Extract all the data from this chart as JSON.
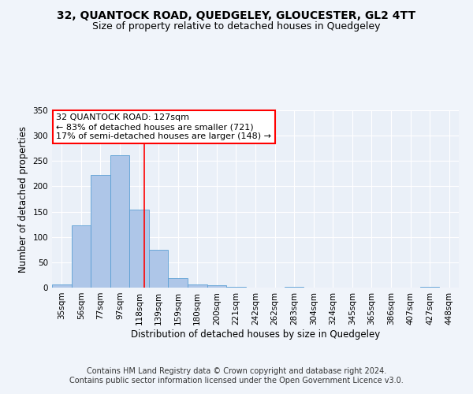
{
  "title": "32, QUANTOCK ROAD, QUEDGELEY, GLOUCESTER, GL2 4TT",
  "subtitle": "Size of property relative to detached houses in Quedgeley",
  "xlabel": "Distribution of detached houses by size in Quedgeley",
  "ylabel": "Number of detached properties",
  "footer_line1": "Contains HM Land Registry data © Crown copyright and database right 2024.",
  "footer_line2": "Contains public sector information licensed under the Open Government Licence v3.0.",
  "bin_labels": [
    "35sqm",
    "56sqm",
    "77sqm",
    "97sqm",
    "118sqm",
    "139sqm",
    "159sqm",
    "180sqm",
    "200sqm",
    "221sqm",
    "242sqm",
    "262sqm",
    "283sqm",
    "304sqm",
    "324sqm",
    "345sqm",
    "365sqm",
    "386sqm",
    "407sqm",
    "427sqm",
    "448sqm"
  ],
  "bar_values": [
    6,
    123,
    222,
    261,
    154,
    75,
    19,
    7,
    4,
    1,
    0,
    0,
    2,
    0,
    0,
    0,
    0,
    0,
    0,
    2,
    0
  ],
  "bar_color": "#aec6e8",
  "bar_edge_color": "#5a9fd4",
  "ylim": [
    0,
    350
  ],
  "yticks": [
    0,
    50,
    100,
    150,
    200,
    250,
    300,
    350
  ],
  "red_line_x": 4.27,
  "annotation_line1": "32 QUANTOCK ROAD: 127sqm",
  "annotation_line2": "← 83% of detached houses are smaller (721)",
  "annotation_line3": "17% of semi-detached houses are larger (148) →",
  "bg_color": "#eaf0f8",
  "grid_color": "#ffffff",
  "title_fontsize": 10,
  "subtitle_fontsize": 9,
  "annotation_fontsize": 8,
  "axis_label_fontsize": 8.5,
  "tick_fontsize": 7.5,
  "footer_fontsize": 7
}
